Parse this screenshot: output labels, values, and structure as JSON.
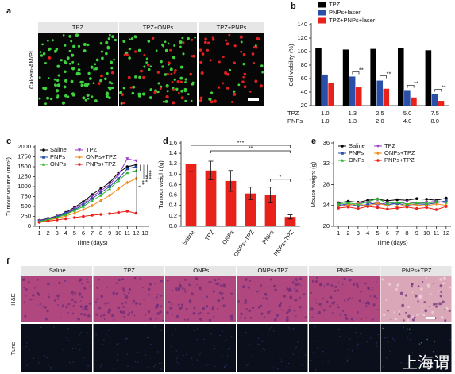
{
  "panels": {
    "a": {
      "label": "a",
      "y_label": "Calcein-AM/PI",
      "columns": [
        "TPZ",
        "TPZ+ONPs",
        "TPZ+PNPs"
      ]
    },
    "f": {
      "label": "f",
      "columns": [
        "Saline",
        "TPZ",
        "ONPs",
        "ONPs+TPZ",
        "PNPs",
        "PNPs+TPZ"
      ],
      "rows": [
        "H&E",
        "Tunel"
      ]
    }
  },
  "watermark": "上海谓",
  "chart_data": [
    {
      "type": "bar",
      "panel_label": "b",
      "y_label": "Cell viability (%)",
      "category_rows": [
        {
          "name": "TPZ",
          "values": [
            "1.0",
            "1.3",
            "2.5",
            "5.0",
            "7.5"
          ]
        },
        {
          "name": "PNPs",
          "values": [
            "1.0",
            "1.3",
            "2.0",
            "4.0",
            "8.0"
          ]
        }
      ],
      "series": [
        {
          "name": "TPZ",
          "color": "#000000",
          "values": [
            105,
            103,
            104,
            105,
            102
          ]
        },
        {
          "name": "PNPs+laser",
          "color": "#2a4fa8",
          "values": [
            66,
            63,
            57,
            43,
            37
          ]
        },
        {
          "name": "TPZ+PNPs+laser",
          "color": "#e8221b",
          "values": [
            54,
            47,
            45,
            32,
            27
          ]
        }
      ],
      "ylim": [
        20,
        140
      ],
      "yticks": [
        20,
        40,
        60,
        80,
        100,
        120,
        140
      ],
      "annotations": [
        "**",
        "**",
        "**",
        "**"
      ],
      "legend": "upper left"
    },
    {
      "type": "line",
      "panel_label": "c",
      "y_label": "Tumour volume (mm³)",
      "x_label": "Time (days)",
      "x": [
        1,
        2,
        3,
        4,
        5,
        6,
        7,
        8,
        9,
        10,
        11,
        12
      ],
      "series": [
        {
          "name": "Saline",
          "color": "#000000",
          "marker": "circle",
          "values": [
            150,
            200,
            260,
            350,
            480,
            620,
            800,
            950,
            1100,
            1350,
            1500,
            1550
          ]
        },
        {
          "name": "TPZ",
          "color": "#9933cc",
          "marker": "triangle-down",
          "values": [
            140,
            190,
            250,
            330,
            450,
            580,
            750,
            900,
            1050,
            1300,
            1700,
            1650
          ]
        },
        {
          "name": "PNPs",
          "color": "#2a4fa8",
          "marker": "square",
          "values": [
            130,
            180,
            240,
            320,
            420,
            540,
            700,
            850,
            1000,
            1200,
            1450,
            1500
          ]
        },
        {
          "name": "ONPs+TPZ",
          "color": "#f08c1e",
          "marker": "diamond",
          "values": [
            110,
            150,
            200,
            260,
            330,
            420,
            520,
            650,
            780,
            950,
            1100,
            1200
          ]
        },
        {
          "name": "ONPs",
          "color": "#2db82d",
          "marker": "triangle-up",
          "values": [
            120,
            170,
            220,
            300,
            400,
            500,
            650,
            780,
            950,
            1150,
            1350,
            1400
          ]
        },
        {
          "name": "PNPs+TPZ",
          "color": "#e8221b",
          "marker": "circle",
          "values": [
            100,
            130,
            160,
            190,
            220,
            250,
            280,
            300,
            320,
            350,
            380,
            330
          ]
        }
      ],
      "xlim": [
        0.5,
        13.5
      ],
      "xticks": [
        1,
        2,
        3,
        4,
        5,
        6,
        7,
        8,
        9,
        10,
        11,
        12,
        13
      ],
      "ylim": [
        0,
        2000
      ],
      "yticks": [
        0,
        250,
        500,
        750,
        1000,
        1250,
        1500,
        1750,
        2000
      ],
      "annotations": [
        "*",
        "**",
        "***",
        "****"
      ],
      "legend": "upper left",
      "legend_columns": 2
    },
    {
      "type": "bar",
      "panel_label": "d",
      "y_label": "Tumour weight (g)",
      "categories": [
        "Saline",
        "TPZ",
        "ONPs",
        "ONPs+TPZ",
        "PNPs",
        "PNPs+TPZ"
      ],
      "values": [
        1.2,
        1.07,
        0.87,
        0.63,
        0.6,
        0.18
      ],
      "errors": [
        0.15,
        0.18,
        0.2,
        0.12,
        0.15,
        0.04
      ],
      "color": "#e8221b",
      "ylim": [
        0,
        1.6
      ],
      "yticks": [
        {
          "value": 0,
          "label": "0.0"
        },
        0.2,
        0.4,
        0.6,
        0.8,
        {
          "value": 1,
          "label": "1.0"
        },
        1.2,
        1.4,
        1.6
      ],
      "annotations": [
        "***",
        "**",
        "*"
      ]
    },
    {
      "type": "line",
      "panel_label": "e",
      "y_label": "Mouse weight (g)",
      "x_label": "Time (days)",
      "x": [
        1,
        2,
        3,
        4,
        5,
        6,
        7,
        8,
        9,
        10,
        11,
        12
      ],
      "series": [
        {
          "name": "Saline",
          "color": "#000000",
          "marker": "circle",
          "values": [
            24.5,
            24.8,
            24.6,
            25.0,
            25.2,
            24.9,
            25.1,
            25.0,
            25.3,
            25.2,
            25.0,
            25.4
          ]
        },
        {
          "name": "TPZ",
          "color": "#9933cc",
          "marker": "triangle-down",
          "values": [
            24.2,
            24.0,
            24.4,
            24.6,
            24.1,
            24.5,
            24.3,
            24.7,
            24.4,
            24.6,
            24.8,
            24.5
          ]
        },
        {
          "name": "PNPs",
          "color": "#2a4fa8",
          "marker": "square",
          "values": [
            24.0,
            24.3,
            23.9,
            24.2,
            24.5,
            24.1,
            24.4,
            24.0,
            24.3,
            24.2,
            24.5,
            24.9
          ]
        },
        {
          "name": "ONPs+TPZ",
          "color": "#f08c1e",
          "marker": "diamond",
          "values": [
            23.8,
            24.1,
            24.3,
            23.9,
            24.4,
            24.0,
            23.8,
            24.2,
            24.1,
            23.9,
            24.3,
            24.0
          ]
        },
        {
          "name": "ONPs",
          "color": "#2db82d",
          "marker": "triangle-up",
          "values": [
            24.3,
            24.5,
            24.2,
            24.7,
            25.3,
            24.4,
            24.6,
            24.3,
            24.5,
            24.4,
            24.7,
            24.6
          ]
        },
        {
          "name": "PNPs+TPZ",
          "color": "#e8221b",
          "marker": "circle",
          "values": [
            23.5,
            23.7,
            23.4,
            23.8,
            23.6,
            23.3,
            23.5,
            23.7,
            23.4,
            23.6,
            23.2,
            23.8
          ]
        }
      ],
      "xlim": [
        0.5,
        12.5
      ],
      "xticks": [
        1,
        2,
        3,
        4,
        5,
        6,
        7,
        8,
        9,
        10,
        11,
        12
      ],
      "ylim": [
        20,
        36
      ],
      "yticks": [
        20,
        24,
        28,
        32,
        36
      ],
      "legend": "upper left",
      "legend_columns": 2
    }
  ]
}
